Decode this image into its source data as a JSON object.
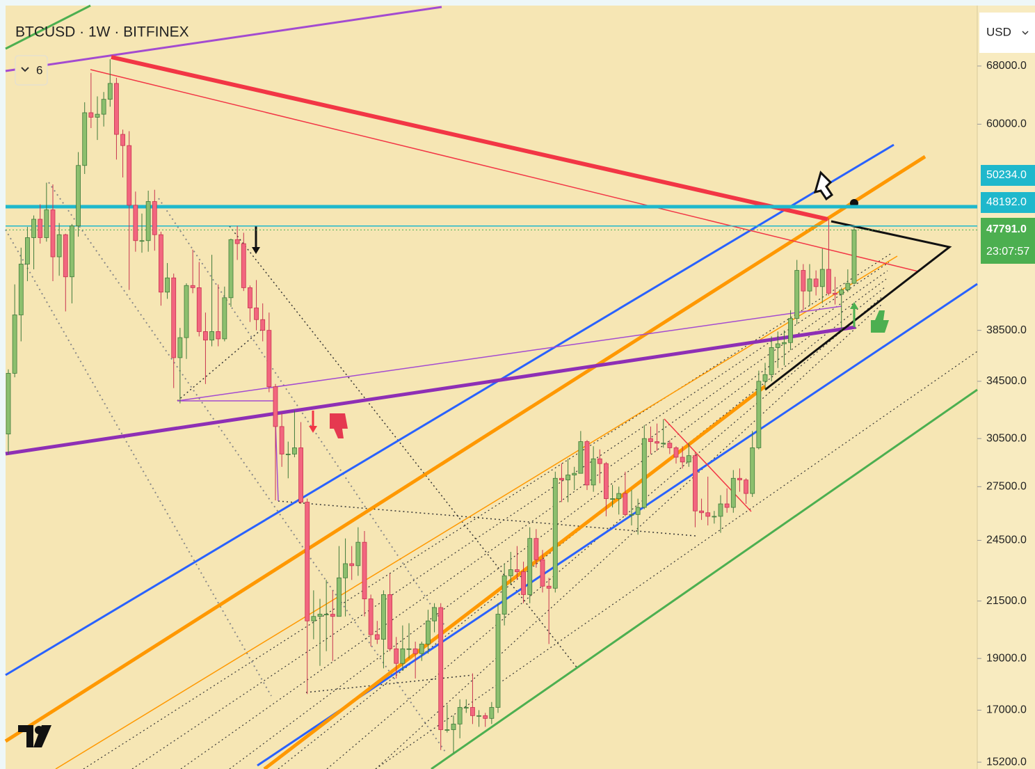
{
  "chart_data": {
    "type": "candlestick",
    "title": "BTCUSD · 1W · BITFINEX",
    "log_scale": true,
    "grid": false,
    "up_color": "#8cbf6e",
    "down_color": "#f2667f",
    "ylim": [
      15090,
      77450
    ],
    "yticks": [
      {
        "value": 15200,
        "label": "15200.0"
      },
      {
        "value": 17000,
        "label": "17000.0"
      },
      {
        "value": 19000,
        "label": "19000.0"
      },
      {
        "value": 21500,
        "label": "21500.0"
      },
      {
        "value": 24500,
        "label": "24500.0"
      },
      {
        "value": 27500,
        "label": "27500.0"
      },
      {
        "value": 30500,
        "label": "30500.0"
      },
      {
        "value": 34500,
        "label": "34500.0"
      },
      {
        "value": 38500,
        "label": "38500.0"
      },
      {
        "value": 60000,
        "label": "60000.0"
      },
      {
        "value": 68000,
        "label": "68000.0"
      }
    ],
    "price_lines": [
      {
        "value": 50234,
        "label": "50234.0",
        "color": "#1fb8cc"
      },
      {
        "value": 48192,
        "label": "48192.0",
        "color": "#1fb8cc"
      }
    ],
    "last_price": {
      "value": 47791,
      "label": "47791.0",
      "countdown": "23:07:57",
      "color": "#4caf50"
    },
    "open": [
      30800,
      35100,
      39800,
      44400,
      47000,
      48900,
      47000,
      49900,
      45100,
      47300,
      43200,
      48200,
      54900,
      61500,
      60900,
      61300,
      63300,
      65500,
      58700,
      57300,
      50400,
      46700,
      46700,
      50800,
      47300,
      41800,
      43100,
      36300,
      37900,
      42400,
      42200,
      38400,
      37700,
      38400,
      37800,
      41300,
      46800,
      46400,
      42200,
      40400,
      39400,
      38500,
      34100,
      31300,
      29500,
      29500,
      29900,
      26600,
      20600,
      20800,
      20900,
      20900,
      20800,
      22600,
      23300,
      23200,
      24400,
      21600,
      20000,
      19800,
      21800,
      19400,
      18800,
      19400,
      19400,
      19200,
      19600,
      20600,
      21200,
      16300,
      16300,
      16500,
      17100,
      17100,
      16800,
      16800,
      16700,
      17100,
      20900,
      22700,
      23000,
      22900,
      21800,
      24600,
      23500,
      22200,
      22100,
      28000,
      27900,
      28200,
      28300,
      30300,
      27600,
      29200,
      28900,
      26800,
      26800,
      27100,
      25900,
      25900,
      26300,
      30500,
      30300,
      30200,
      30200,
      29900,
      29300,
      29000,
      29400,
      26100,
      26000,
      25800,
      25800,
      26500,
      26300,
      28000,
      27900,
      27100,
      29900,
      34500,
      35000,
      37100,
      37400,
      37500,
      39500,
      43800,
      41900,
      43000,
      42300,
      43900,
      41700,
      41600,
      42000,
      42600
    ],
    "high": [
      35400,
      42500,
      46000,
      48100,
      49300,
      50500,
      52900,
      52700,
      48500,
      47400,
      48400,
      56500,
      62900,
      67000,
      63700,
      64300,
      69000,
      66300,
      59300,
      59100,
      51900,
      49500,
      52000,
      52100,
      47600,
      44500,
      43500,
      38700,
      42600,
      45800,
      44600,
      40000,
      45300,
      42500,
      42300,
      46900,
      48200,
      47500,
      42400,
      42900,
      40800,
      40000,
      34300,
      32200,
      30300,
      32400,
      31600,
      26800,
      22000,
      21600,
      22500,
      22000,
      24200,
      24600,
      24200,
      25200,
      25000,
      21800,
      20600,
      22000,
      22800,
      19900,
      20400,
      20500,
      19700,
      19700,
      21100,
      21400,
      21400,
      17200,
      16800,
      17400,
      17400,
      18400,
      17000,
      16900,
      17300,
      21400,
      23300,
      23900,
      24200,
      23400,
      25200,
      25100,
      24000,
      22600,
      28400,
      28900,
      29200,
      28700,
      31000,
      30400,
      30000,
      29800,
      29000,
      27600,
      27500,
      28400,
      27300,
      26800,
      31400,
      31300,
      31500,
      31800,
      30400,
      30000,
      30000,
      30200,
      29600,
      26800,
      28100,
      26100,
      27000,
      27400,
      28500,
      28600,
      28000,
      31000,
      35300,
      35900,
      38000,
      38400,
      38500,
      40200,
      44800,
      44400,
      44400,
      43800,
      45900,
      49000,
      43200,
      42200,
      43900,
      48000
    ],
    "low": [
      29500,
      34800,
      37600,
      42800,
      43900,
      46400,
      46600,
      42800,
      43300,
      40100,
      40800,
      47100,
      53900,
      59500,
      58000,
      59700,
      62300,
      55600,
      53500,
      42000,
      45600,
      45500,
      45600,
      45700,
      40600,
      41200,
      34000,
      32900,
      36200,
      41700,
      38000,
      34300,
      37200,
      37200,
      37600,
      40500,
      44800,
      41900,
      39200,
      38500,
      37600,
      33700,
      26700,
      28700,
      28000,
      29300,
      26500,
      17600,
      19800,
      18700,
      19300,
      18900,
      20800,
      20800,
      22500,
      22700,
      20800,
      19500,
      19600,
      18600,
      19300,
      18200,
      18500,
      19000,
      18200,
      18900,
      19200,
      20100,
      15600,
      16200,
      15500,
      16000,
      16900,
      16500,
      16400,
      16400,
      16500,
      16900,
      20400,
      22300,
      22500,
      21400,
      21400,
      23100,
      21900,
      19600,
      21900,
      26600,
      26600,
      27300,
      28300,
      27300,
      27200,
      27700,
      25800,
      26300,
      25900,
      25800,
      25300,
      24800,
      26200,
      29500,
      29700,
      29900,
      29500,
      28900,
      28600,
      28700,
      25200,
      25600,
      25300,
      25400,
      24900,
      26000,
      26000,
      27200,
      26500,
      26900,
      29800,
      33900,
      34500,
      35500,
      35700,
      36900,
      39000,
      40200,
      40600,
      41500,
      40800,
      41500,
      40700,
      38500,
      41800,
      42500
    ],
    "close": [
      35100,
      39800,
      44400,
      47000,
      48900,
      47000,
      49900,
      45100,
      47300,
      43200,
      48200,
      54900,
      61500,
      60900,
      61300,
      63300,
      65500,
      58700,
      57300,
      50400,
      46700,
      46700,
      50800,
      47300,
      41800,
      43100,
      36300,
      37900,
      42400,
      42200,
      38400,
      37700,
      38400,
      37800,
      41300,
      46800,
      46400,
      42200,
      40400,
      39400,
      38500,
      34100,
      31300,
      29500,
      29500,
      29900,
      26600,
      20600,
      20800,
      20900,
      20900,
      20800,
      22600,
      23300,
      23200,
      24400,
      21600,
      20000,
      19800,
      21800,
      19400,
      18800,
      19400,
      19400,
      19200,
      19600,
      20600,
      21200,
      16300,
      16300,
      16500,
      17100,
      17100,
      16800,
      16800,
      16700,
      17100,
      20900,
      22700,
      23000,
      22900,
      21800,
      24600,
      23500,
      22200,
      22100,
      28000,
      27900,
      28200,
      28300,
      30300,
      27600,
      29200,
      28900,
      26800,
      26800,
      27100,
      25900,
      25900,
      26300,
      30500,
      30300,
      30200,
      30200,
      29900,
      29300,
      29000,
      29400,
      26100,
      26000,
      25800,
      25800,
      26500,
      26300,
      28000,
      27900,
      27100,
      29900,
      34500,
      35000,
      37100,
      37400,
      37500,
      39500,
      43800,
      41900,
      43000,
      42300,
      43900,
      41700,
      41600,
      42000,
      42600,
      47791
    ]
  },
  "toolbar": {
    "indicator_count": "6",
    "currency": "USD"
  }
}
